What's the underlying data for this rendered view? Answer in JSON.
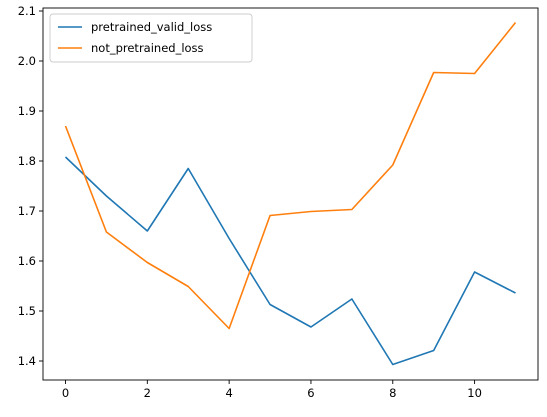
{
  "chart_data": {
    "type": "line",
    "title": "",
    "xlabel": "",
    "ylabel": "",
    "x": [
      0,
      1,
      2,
      3,
      4,
      5,
      6,
      7,
      8,
      9,
      10,
      11
    ],
    "xlim": [
      -0.55,
      11.55
    ],
    "ylim": [
      1.362,
      2.106
    ],
    "x_ticks": [
      0,
      2,
      4,
      6,
      8,
      10
    ],
    "x_tick_labels": [
      "0",
      "2",
      "4",
      "6",
      "8",
      "10"
    ],
    "y_ticks": [
      1.4,
      1.5,
      1.6,
      1.7,
      1.8,
      1.9,
      2.0,
      2.1
    ],
    "y_tick_labels": [
      "1.4",
      "1.5",
      "1.6",
      "1.7",
      "1.8",
      "1.9",
      "2.0",
      "2.1"
    ],
    "grid": false,
    "legend_position": "upper-left",
    "series": [
      {
        "name": "pretrained_valid_loss",
        "color": "#1f77b4",
        "values": [
          1.808,
          1.73,
          1.66,
          1.785,
          1.645,
          1.513,
          1.468,
          1.524,
          1.393,
          1.421,
          1.578,
          1.536
        ]
      },
      {
        "name": "not_pretrained_loss",
        "color": "#ff7f0e",
        "values": [
          1.87,
          1.658,
          1.597,
          1.549,
          1.465,
          1.691,
          1.699,
          1.703,
          1.792,
          1.977,
          1.975,
          2.077
        ]
      }
    ]
  }
}
